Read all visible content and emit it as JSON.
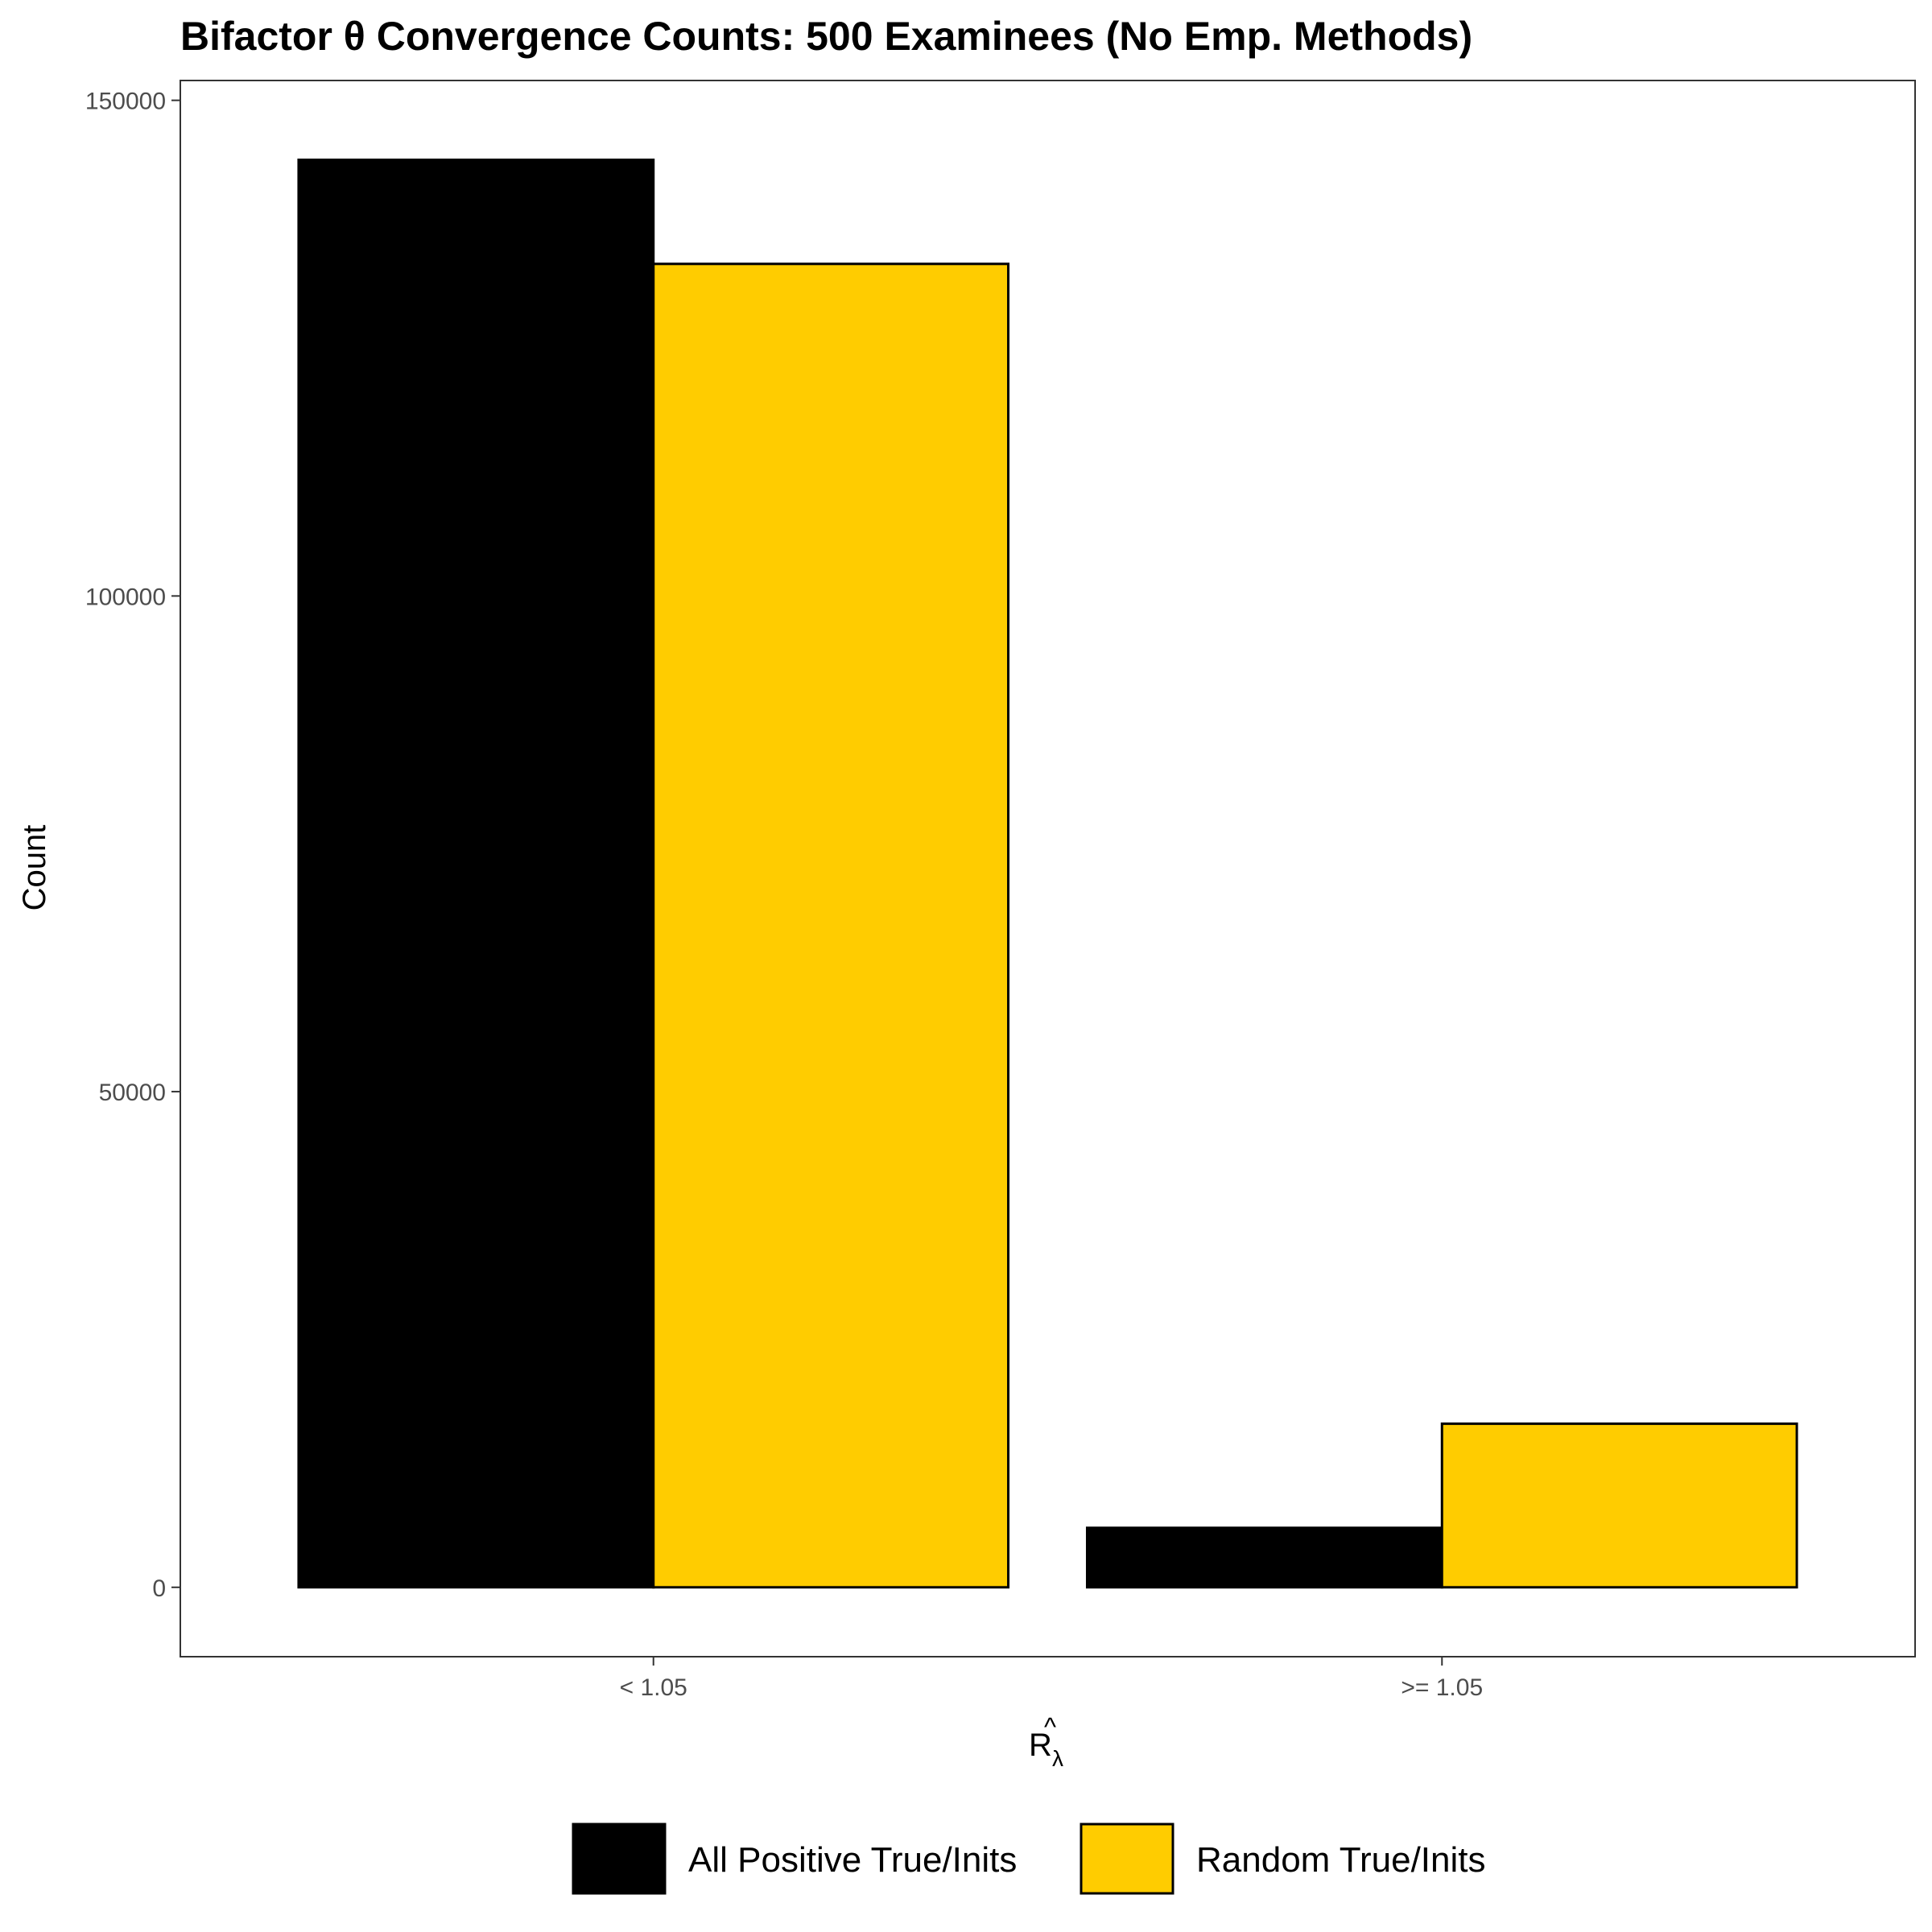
{
  "chart_data": {
    "type": "bar",
    "title": "Bifactor θ Convergence Counts: 500 Examinees (No Emp. Methods)",
    "xlabel_main": "R",
    "xlabel_hat": "^",
    "xlabel_sub": "λ",
    "ylabel": "Count",
    "categories": [
      "< 1.05",
      ">= 1.05"
    ],
    "series": [
      {
        "name": "All Positive True/Inits",
        "color": "#000000",
        "values": [
          144000,
          6000
        ]
      },
      {
        "name": "Random True/Inits",
        "color": "#FFCC00",
        "values": [
          133500,
          16500
        ]
      }
    ],
    "ylim": [
      -7000,
      152000
    ],
    "yticks": [
      0,
      50000,
      100000,
      150000
    ],
    "grid": false,
    "legend_position": "bottom"
  }
}
